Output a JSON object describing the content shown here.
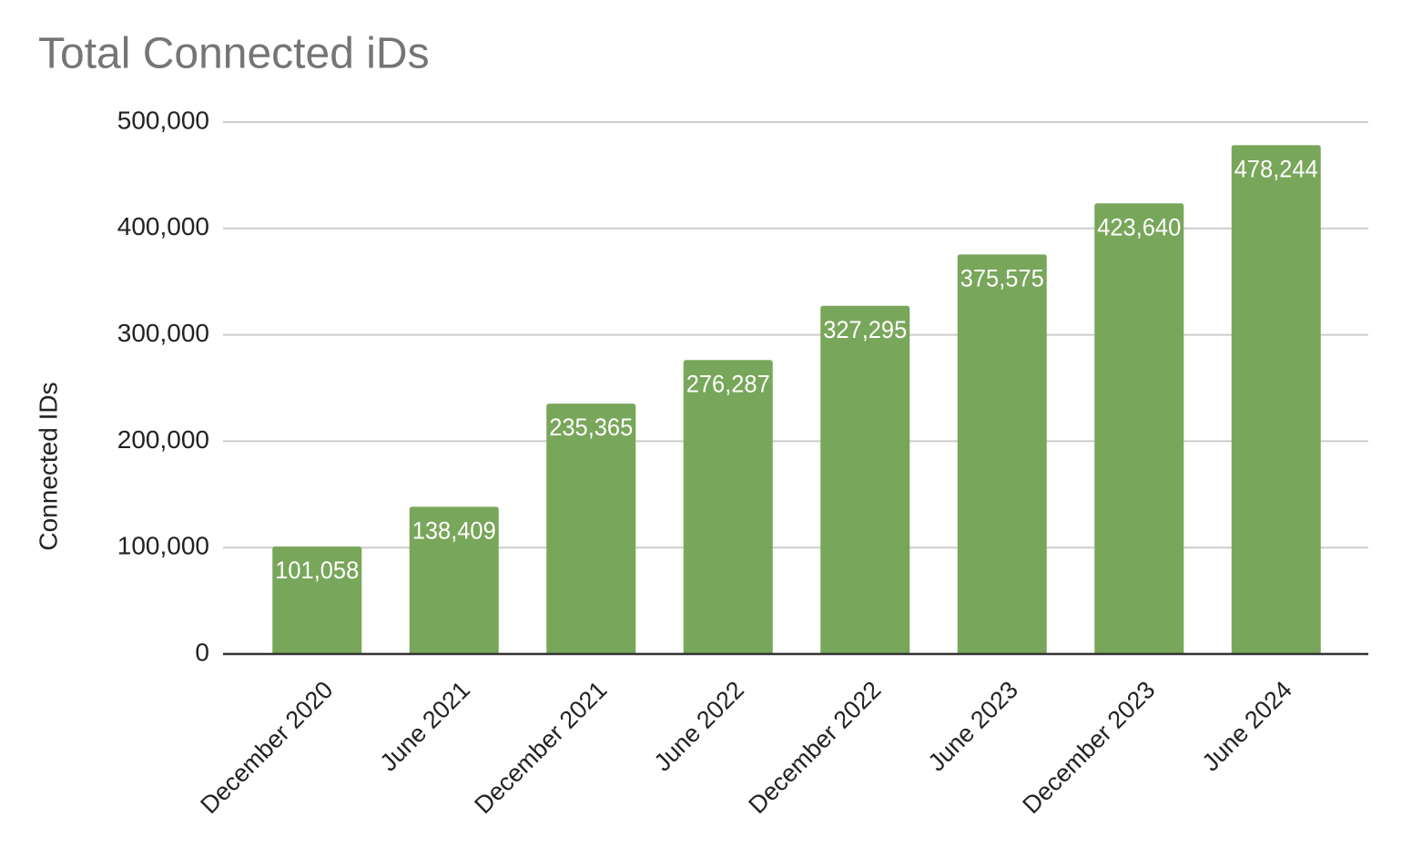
{
  "chart_data": {
    "type": "bar",
    "title": "Total Connected iDs",
    "y_label": "Connected IDs",
    "categories": [
      "December 2020",
      "June 2021",
      "December 2021",
      "June 2022",
      "December 2022",
      "June 2023",
      "December 2023",
      "June 2024"
    ],
    "values": [
      101058,
      138409,
      235365,
      276287,
      327295,
      375575,
      423640,
      478244
    ],
    "value_labels": [
      "101,058",
      "138,409",
      "235,365",
      "276,287",
      "327,295",
      "375,575",
      "423,640",
      "478,244"
    ],
    "color": "#78a65a",
    "ylim": [
      0,
      500000
    ],
    "yticks": [
      0,
      {
        "value": 100000,
        "label": "100,000"
      },
      {
        "value": 200000,
        "label": "200,000"
      },
      {
        "value": 300000,
        "label": "300,000"
      },
      {
        "value": 400000,
        "label": "400,000"
      },
      {
        "value": 500000,
        "label": "500,000"
      }
    ],
    "grid": true
  }
}
